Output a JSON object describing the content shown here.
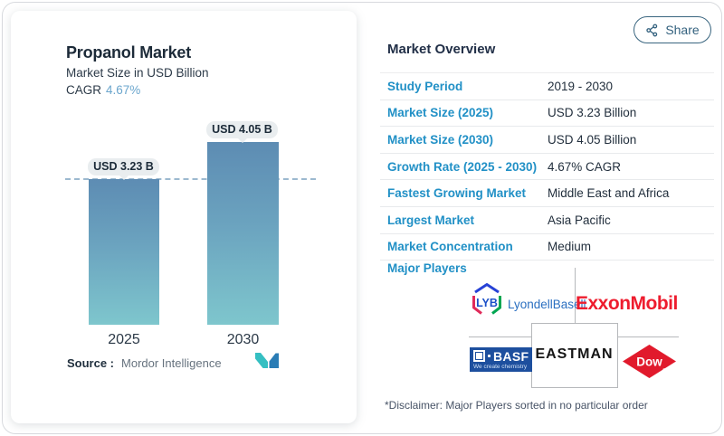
{
  "header": {
    "share_button": {
      "label": "Share"
    }
  },
  "chart_card": {
    "title": "Propanol Market",
    "subtitle": "Market Size in USD Billion",
    "cagr_label": "CAGR",
    "cagr_value": "4.67%",
    "source_label": "Source :",
    "source_name": "Mordor Intelligence"
  },
  "chart_data": {
    "type": "bar",
    "title": "Propanol Market",
    "subtitle": "Market Size in USD Billion",
    "unit": "USD Billion",
    "categories": [
      "2025",
      "2030"
    ],
    "values": [
      3.23,
      4.05
    ],
    "bar_labels": [
      "USD 3.23 B",
      "USD 4.05 B"
    ],
    "ylim": [
      0,
      4.05
    ],
    "reference_line": 3.23,
    "grid": false,
    "legend": false,
    "bar_gradient_top": "#5d8cb3",
    "bar_gradient_bottom": "#7ec6cd"
  },
  "overview": {
    "heading": "Market Overview",
    "rows": [
      {
        "label": "Study Period",
        "value": "2019 - 2030"
      },
      {
        "label": "Market Size (2025)",
        "value": "USD 3.23 Billion"
      },
      {
        "label": "Market Size (2030)",
        "value": "USD 4.05 Billion"
      },
      {
        "label": "Growth Rate (2025 - 2030)",
        "value": "4.67% CAGR"
      },
      {
        "label": "Fastest Growing Market",
        "value": "Middle East and Africa"
      },
      {
        "label": "Largest Market",
        "value": "Asia Pacific"
      },
      {
        "label": "Market Concentration",
        "value": "Medium"
      }
    ],
    "major_players_label": "Major Players",
    "disclaimer": "*Disclaimer: Major Players sorted in no particular order"
  },
  "players": {
    "lyb_monogram": "LYB",
    "lyondellbasell": "LyondellBasell",
    "exxonmobil": "ExxonMobil",
    "basf": "BASF",
    "basf_tagline": "We create chemistry",
    "eastman": "EASTMAN",
    "dow": "Dow",
    "dow_reg": "®"
  },
  "colors": {
    "accent_blue": "#2190c6",
    "dark_text": "#22303e",
    "share_teal": "#33617e",
    "bar_top": "#5d8cb3",
    "bar_bottom": "#7ec6cd",
    "dashed_line": "#9cb9cf",
    "exxon_red": "#ee1c2e",
    "basf_blue": "#1d4f9e",
    "dow_red": "#e11a2c",
    "lyondell_blue": "#2a6fc0"
  }
}
